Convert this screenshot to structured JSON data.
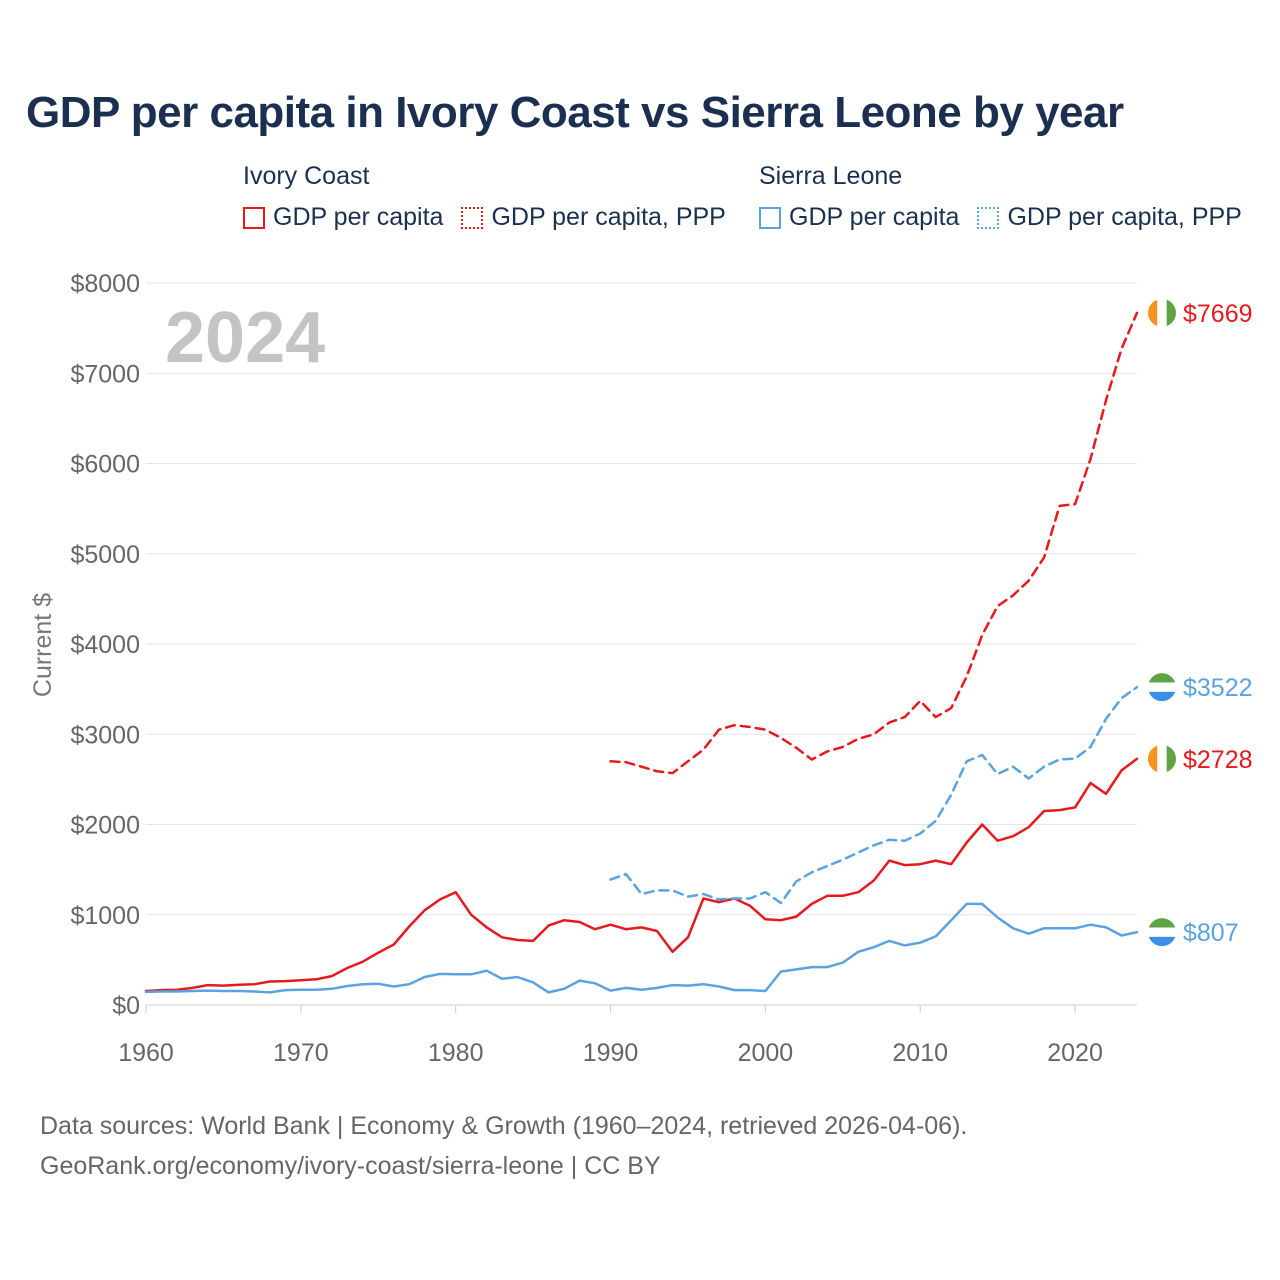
{
  "title": "GDP per capita in Ivory Coast vs Sierra Leone by year",
  "legend": {
    "groups": [
      {
        "name": "Ivory Coast",
        "items": [
          "GDP per capita",
          "GDP per capita, PPP"
        ],
        "color": "#e8191c"
      },
      {
        "name": "Sierra Leone",
        "items": [
          "GDP per capita",
          "GDP per capita, PPP"
        ],
        "color": "#5ba3e0"
      }
    ]
  },
  "year_label": "2024",
  "ylabel": "Current $",
  "footer": {
    "line1": "Data sources: World Bank | Economy & Growth (1960–2024, retrieved 2026-04-06).",
    "line2": "GeoRank.org/economy/ivory-coast/sierra-leone | CC BY"
  },
  "chart_data": {
    "type": "line",
    "title": "GDP per capita in Ivory Coast vs Sierra Leone by year",
    "xlabel": "",
    "ylabel": "Current $",
    "xlim": [
      1960,
      2024
    ],
    "ylim": [
      0,
      8000
    ],
    "x_ticks": [
      1960,
      1970,
      1980,
      1990,
      2000,
      2010,
      2020
    ],
    "x_tick_labels": [
      "1960",
      "1970",
      "1980",
      "1990",
      "2000",
      "2010",
      "2020"
    ],
    "y_ticks": [
      0,
      1000,
      2000,
      3000,
      4000,
      5000,
      6000,
      7000,
      8000
    ],
    "y_tick_labels": [
      "$0",
      "$1000",
      "$2000",
      "$3000",
      "$4000",
      "$5000",
      "$6000",
      "$7000",
      "$8000"
    ],
    "grid": true,
    "end_labels": [
      {
        "series": "Ivory Coast GDP per capita, PPP",
        "label": "$7669",
        "value": 7669
      },
      {
        "series": "Sierra Leone GDP per capita, PPP",
        "label": "$3522",
        "value": 3522
      },
      {
        "series": "Ivory Coast GDP per capita",
        "label": "$2728",
        "value": 2728
      },
      {
        "series": "Sierra Leone GDP per capita",
        "label": "$807",
        "value": 807
      }
    ],
    "series": [
      {
        "name": "Ivory Coast GDP per capita",
        "color": "#e8191c",
        "dash": false,
        "flag": "ivory-coast",
        "x": [
          1960,
          1961,
          1962,
          1963,
          1964,
          1965,
          1966,
          1967,
          1968,
          1969,
          1970,
          1971,
          1972,
          1973,
          1974,
          1975,
          1976,
          1977,
          1978,
          1979,
          1980,
          1981,
          1982,
          1983,
          1984,
          1985,
          1986,
          1987,
          1988,
          1989,
          1990,
          1991,
          1992,
          1993,
          1994,
          1995,
          1996,
          1997,
          1998,
          1999,
          2000,
          2001,
          2002,
          2003,
          2004,
          2005,
          2006,
          2007,
          2008,
          2009,
          2010,
          2011,
          2012,
          2013,
          2014,
          2015,
          2016,
          2017,
          2018,
          2019,
          2020,
          2021,
          2022,
          2023,
          2024
        ],
        "y": [
          155,
          165,
          170,
          190,
          220,
          215,
          225,
          230,
          260,
          265,
          275,
          285,
          320,
          410,
          480,
          580,
          670,
          870,
          1050,
          1170,
          1250,
          1000,
          860,
          750,
          720,
          710,
          880,
          940,
          920,
          840,
          890,
          840,
          860,
          820,
          590,
          750,
          1180,
          1140,
          1180,
          1100,
          950,
          940,
          980,
          1120,
          1210,
          1210,
          1250,
          1380,
          1600,
          1550,
          1560,
          1600,
          1560,
          1800,
          2000,
          1820,
          1870,
          1970,
          2150,
          2160,
          2190,
          2460,
          2340,
          2600,
          2728
        ]
      },
      {
        "name": "Ivory Coast GDP per capita, PPP",
        "color": "#e8191c",
        "dash": true,
        "flag": "ivory-coast",
        "x": [
          1990,
          1991,
          1992,
          1993,
          1994,
          1995,
          1996,
          1997,
          1998,
          1999,
          2000,
          2001,
          2002,
          2003,
          2004,
          2005,
          2006,
          2007,
          2008,
          2009,
          2010,
          2011,
          2012,
          2013,
          2014,
          2015,
          2016,
          2017,
          2018,
          2019,
          2020,
          2021,
          2022,
          2023,
          2024
        ],
        "y": [
          2700,
          2690,
          2640,
          2590,
          2570,
          2700,
          2830,
          3050,
          3100,
          3080,
          3050,
          2960,
          2850,
          2720,
          2810,
          2860,
          2950,
          3000,
          3130,
          3190,
          3370,
          3190,
          3290,
          3640,
          4100,
          4420,
          4540,
          4700,
          4960,
          5530,
          5550,
          6050,
          6700,
          7270,
          7669
        ]
      },
      {
        "name": "Sierra Leone GDP per capita",
        "color": "#5ba3e0",
        "dash": false,
        "flag": "sierra-leone",
        "x": [
          1960,
          1961,
          1962,
          1963,
          1964,
          1965,
          1966,
          1967,
          1968,
          1969,
          1970,
          1971,
          1972,
          1973,
          1974,
          1975,
          1976,
          1977,
          1978,
          1979,
          1980,
          1981,
          1982,
          1983,
          1984,
          1985,
          1986,
          1987,
          1988,
          1989,
          1990,
          1991,
          1992,
          1993,
          1994,
          1995,
          1996,
          1997,
          1998,
          1999,
          2000,
          2001,
          2002,
          2003,
          2004,
          2005,
          2006,
          2007,
          2008,
          2009,
          2010,
          2011,
          2012,
          2013,
          2014,
          2015,
          2016,
          2017,
          2018,
          2019,
          2020,
          2021,
          2022,
          2023,
          2024
        ],
        "y": [
          145,
          150,
          150,
          155,
          160,
          155,
          155,
          150,
          140,
          165,
          170,
          168,
          180,
          210,
          230,
          235,
          205,
          230,
          310,
          345,
          340,
          340,
          380,
          290,
          310,
          250,
          140,
          180,
          270,
          240,
          160,
          190,
          170,
          190,
          220,
          215,
          230,
          205,
          165,
          165,
          155,
          370,
          395,
          420,
          420,
          470,
          590,
          640,
          710,
          660,
          690,
          760,
          940,
          1120,
          1120,
          970,
          850,
          790,
          850,
          850,
          850,
          890,
          860,
          770,
          807
        ]
      },
      {
        "name": "Sierra Leone GDP per capita, PPP",
        "color": "#5ba3e0",
        "dash": true,
        "flag": "sierra-leone",
        "x": [
          1990,
          1991,
          1992,
          1993,
          1994,
          1995,
          1996,
          1997,
          1998,
          1999,
          2000,
          2001,
          2002,
          2003,
          2004,
          2005,
          2006,
          2007,
          2008,
          2009,
          2010,
          2011,
          2012,
          2013,
          2014,
          2015,
          2016,
          2017,
          2018,
          2019,
          2020,
          2021,
          2022,
          2023,
          2024
        ],
        "y": [
          1390,
          1450,
          1230,
          1270,
          1270,
          1200,
          1230,
          1170,
          1180,
          1180,
          1250,
          1130,
          1370,
          1470,
          1540,
          1610,
          1690,
          1770,
          1830,
          1820,
          1900,
          2040,
          2330,
          2700,
          2770,
          2560,
          2640,
          2510,
          2640,
          2720,
          2730,
          2860,
          3170,
          3400,
          3522
        ]
      }
    ]
  }
}
